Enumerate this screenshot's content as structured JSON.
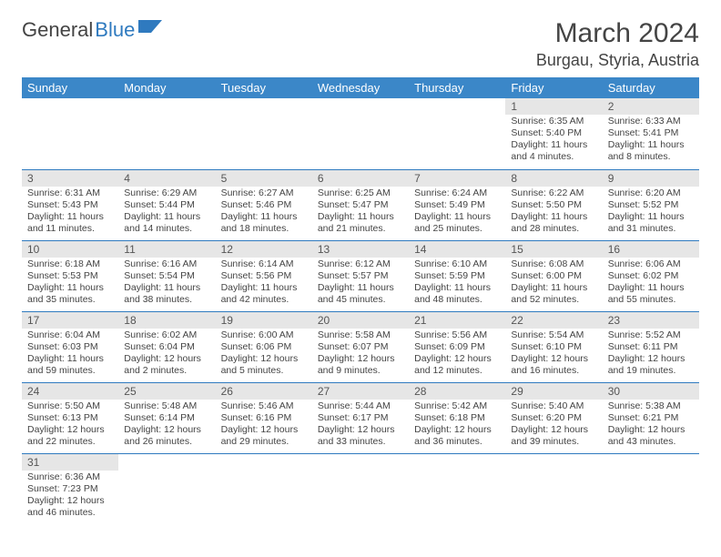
{
  "logo": {
    "text_a": "General",
    "text_b": "Blue"
  },
  "title": "March 2024",
  "location": "Burgau, Styria, Austria",
  "colors": {
    "header_bg": "#3b87c8",
    "header_text": "#ffffff",
    "daynum_bg": "#e6e6e6",
    "border": "#2f7abf",
    "text": "#444444",
    "logo_accent": "#2f7abf"
  },
  "days_of_week": [
    "Sunday",
    "Monday",
    "Tuesday",
    "Wednesday",
    "Thursday",
    "Friday",
    "Saturday"
  ],
  "weeks": [
    [
      {
        "n": "",
        "sunrise": "",
        "sunset": "",
        "daylight": ""
      },
      {
        "n": "",
        "sunrise": "",
        "sunset": "",
        "daylight": ""
      },
      {
        "n": "",
        "sunrise": "",
        "sunset": "",
        "daylight": ""
      },
      {
        "n": "",
        "sunrise": "",
        "sunset": "",
        "daylight": ""
      },
      {
        "n": "",
        "sunrise": "",
        "sunset": "",
        "daylight": ""
      },
      {
        "n": "1",
        "sunrise": "Sunrise: 6:35 AM",
        "sunset": "Sunset: 5:40 PM",
        "daylight": "Daylight: 11 hours and 4 minutes."
      },
      {
        "n": "2",
        "sunrise": "Sunrise: 6:33 AM",
        "sunset": "Sunset: 5:41 PM",
        "daylight": "Daylight: 11 hours and 8 minutes."
      }
    ],
    [
      {
        "n": "3",
        "sunrise": "Sunrise: 6:31 AM",
        "sunset": "Sunset: 5:43 PM",
        "daylight": "Daylight: 11 hours and 11 minutes."
      },
      {
        "n": "4",
        "sunrise": "Sunrise: 6:29 AM",
        "sunset": "Sunset: 5:44 PM",
        "daylight": "Daylight: 11 hours and 14 minutes."
      },
      {
        "n": "5",
        "sunrise": "Sunrise: 6:27 AM",
        "sunset": "Sunset: 5:46 PM",
        "daylight": "Daylight: 11 hours and 18 minutes."
      },
      {
        "n": "6",
        "sunrise": "Sunrise: 6:25 AM",
        "sunset": "Sunset: 5:47 PM",
        "daylight": "Daylight: 11 hours and 21 minutes."
      },
      {
        "n": "7",
        "sunrise": "Sunrise: 6:24 AM",
        "sunset": "Sunset: 5:49 PM",
        "daylight": "Daylight: 11 hours and 25 minutes."
      },
      {
        "n": "8",
        "sunrise": "Sunrise: 6:22 AM",
        "sunset": "Sunset: 5:50 PM",
        "daylight": "Daylight: 11 hours and 28 minutes."
      },
      {
        "n": "9",
        "sunrise": "Sunrise: 6:20 AM",
        "sunset": "Sunset: 5:52 PM",
        "daylight": "Daylight: 11 hours and 31 minutes."
      }
    ],
    [
      {
        "n": "10",
        "sunrise": "Sunrise: 6:18 AM",
        "sunset": "Sunset: 5:53 PM",
        "daylight": "Daylight: 11 hours and 35 minutes."
      },
      {
        "n": "11",
        "sunrise": "Sunrise: 6:16 AM",
        "sunset": "Sunset: 5:54 PM",
        "daylight": "Daylight: 11 hours and 38 minutes."
      },
      {
        "n": "12",
        "sunrise": "Sunrise: 6:14 AM",
        "sunset": "Sunset: 5:56 PM",
        "daylight": "Daylight: 11 hours and 42 minutes."
      },
      {
        "n": "13",
        "sunrise": "Sunrise: 6:12 AM",
        "sunset": "Sunset: 5:57 PM",
        "daylight": "Daylight: 11 hours and 45 minutes."
      },
      {
        "n": "14",
        "sunrise": "Sunrise: 6:10 AM",
        "sunset": "Sunset: 5:59 PM",
        "daylight": "Daylight: 11 hours and 48 minutes."
      },
      {
        "n": "15",
        "sunrise": "Sunrise: 6:08 AM",
        "sunset": "Sunset: 6:00 PM",
        "daylight": "Daylight: 11 hours and 52 minutes."
      },
      {
        "n": "16",
        "sunrise": "Sunrise: 6:06 AM",
        "sunset": "Sunset: 6:02 PM",
        "daylight": "Daylight: 11 hours and 55 minutes."
      }
    ],
    [
      {
        "n": "17",
        "sunrise": "Sunrise: 6:04 AM",
        "sunset": "Sunset: 6:03 PM",
        "daylight": "Daylight: 11 hours and 59 minutes."
      },
      {
        "n": "18",
        "sunrise": "Sunrise: 6:02 AM",
        "sunset": "Sunset: 6:04 PM",
        "daylight": "Daylight: 12 hours and 2 minutes."
      },
      {
        "n": "19",
        "sunrise": "Sunrise: 6:00 AM",
        "sunset": "Sunset: 6:06 PM",
        "daylight": "Daylight: 12 hours and 5 minutes."
      },
      {
        "n": "20",
        "sunrise": "Sunrise: 5:58 AM",
        "sunset": "Sunset: 6:07 PM",
        "daylight": "Daylight: 12 hours and 9 minutes."
      },
      {
        "n": "21",
        "sunrise": "Sunrise: 5:56 AM",
        "sunset": "Sunset: 6:09 PM",
        "daylight": "Daylight: 12 hours and 12 minutes."
      },
      {
        "n": "22",
        "sunrise": "Sunrise: 5:54 AM",
        "sunset": "Sunset: 6:10 PM",
        "daylight": "Daylight: 12 hours and 16 minutes."
      },
      {
        "n": "23",
        "sunrise": "Sunrise: 5:52 AM",
        "sunset": "Sunset: 6:11 PM",
        "daylight": "Daylight: 12 hours and 19 minutes."
      }
    ],
    [
      {
        "n": "24",
        "sunrise": "Sunrise: 5:50 AM",
        "sunset": "Sunset: 6:13 PM",
        "daylight": "Daylight: 12 hours and 22 minutes."
      },
      {
        "n": "25",
        "sunrise": "Sunrise: 5:48 AM",
        "sunset": "Sunset: 6:14 PM",
        "daylight": "Daylight: 12 hours and 26 minutes."
      },
      {
        "n": "26",
        "sunrise": "Sunrise: 5:46 AM",
        "sunset": "Sunset: 6:16 PM",
        "daylight": "Daylight: 12 hours and 29 minutes."
      },
      {
        "n": "27",
        "sunrise": "Sunrise: 5:44 AM",
        "sunset": "Sunset: 6:17 PM",
        "daylight": "Daylight: 12 hours and 33 minutes."
      },
      {
        "n": "28",
        "sunrise": "Sunrise: 5:42 AM",
        "sunset": "Sunset: 6:18 PM",
        "daylight": "Daylight: 12 hours and 36 minutes."
      },
      {
        "n": "29",
        "sunrise": "Sunrise: 5:40 AM",
        "sunset": "Sunset: 6:20 PM",
        "daylight": "Daylight: 12 hours and 39 minutes."
      },
      {
        "n": "30",
        "sunrise": "Sunrise: 5:38 AM",
        "sunset": "Sunset: 6:21 PM",
        "daylight": "Daylight: 12 hours and 43 minutes."
      }
    ],
    [
      {
        "n": "31",
        "sunrise": "Sunrise: 6:36 AM",
        "sunset": "Sunset: 7:23 PM",
        "daylight": "Daylight: 12 hours and 46 minutes."
      },
      {
        "n": "",
        "sunrise": "",
        "sunset": "",
        "daylight": ""
      },
      {
        "n": "",
        "sunrise": "",
        "sunset": "",
        "daylight": ""
      },
      {
        "n": "",
        "sunrise": "",
        "sunset": "",
        "daylight": ""
      },
      {
        "n": "",
        "sunrise": "",
        "sunset": "",
        "daylight": ""
      },
      {
        "n": "",
        "sunrise": "",
        "sunset": "",
        "daylight": ""
      },
      {
        "n": "",
        "sunrise": "",
        "sunset": "",
        "daylight": ""
      }
    ]
  ]
}
